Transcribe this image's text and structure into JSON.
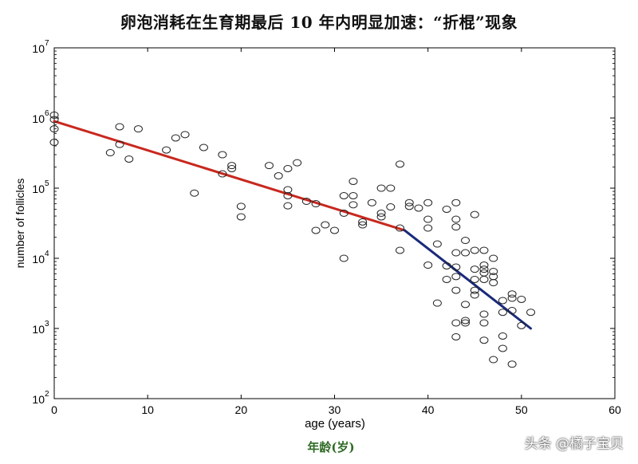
{
  "title": "卵泡消耗在生育期最后 10 年内明显加速：“折棍”现象",
  "caption_cn_x": "年龄(岁)",
  "watermark": "头条 @橘子宝贝",
  "colors": {
    "red_line": "#c8281e",
    "blue_line": "#1a2a7a",
    "axis": "#000000",
    "points": "#222222"
  },
  "chart_data": {
    "type": "scatter",
    "xlabel": "age (years)",
    "ylabel": "number of follicles",
    "xlim": [
      0,
      60
    ],
    "ylim_log10": [
      2,
      7
    ],
    "y_scale": "log",
    "grid": false,
    "xticks": [
      0,
      10,
      20,
      30,
      40,
      50,
      60
    ],
    "yticks": [
      {
        "exp": 2,
        "label": "10",
        "sup": "2"
      },
      {
        "exp": 3,
        "label": "10",
        "sup": "3"
      },
      {
        "exp": 4,
        "label": "10",
        "sup": "4"
      },
      {
        "exp": 5,
        "label": "10",
        "sup": "5"
      },
      {
        "exp": 6,
        "label": "10",
        "sup": "6"
      },
      {
        "exp": 7,
        "label": "10",
        "sup": "7"
      }
    ],
    "points": [
      [
        0,
        1100000
      ],
      [
        0,
        950000
      ],
      [
        0,
        700000
      ],
      [
        0,
        450000
      ],
      [
        6,
        320000
      ],
      [
        7,
        750000
      ],
      [
        7,
        420000
      ],
      [
        8,
        260000
      ],
      [
        9,
        700000
      ],
      [
        12,
        350000
      ],
      [
        13,
        520000
      ],
      [
        14,
        580000
      ],
      [
        15,
        85000
      ],
      [
        16,
        380000
      ],
      [
        18,
        300000
      ],
      [
        18,
        160000
      ],
      [
        19,
        210000
      ],
      [
        19,
        190000
      ],
      [
        20,
        55000
      ],
      [
        20,
        39000
      ],
      [
        23,
        210000
      ],
      [
        24,
        150000
      ],
      [
        25,
        190000
      ],
      [
        25,
        95000
      ],
      [
        25,
        78000
      ],
      [
        25,
        56000
      ],
      [
        26,
        230000
      ],
      [
        27,
        65000
      ],
      [
        28,
        60000
      ],
      [
        28,
        25000
      ],
      [
        29,
        30000
      ],
      [
        30,
        25000
      ],
      [
        31,
        78000
      ],
      [
        31,
        44000
      ],
      [
        31,
        10000
      ],
      [
        32,
        125000
      ],
      [
        32,
        78000
      ],
      [
        32,
        58000
      ],
      [
        33,
        33000
      ],
      [
        33,
        30000
      ],
      [
        34,
        62000
      ],
      [
        35,
        100000
      ],
      [
        35,
        44000
      ],
      [
        35,
        39000
      ],
      [
        36,
        100000
      ],
      [
        36,
        54000
      ],
      [
        37,
        220000
      ],
      [
        37,
        27000
      ],
      [
        37,
        13000
      ],
      [
        38,
        62000
      ],
      [
        38,
        55000
      ],
      [
        39,
        52000
      ],
      [
        40,
        62000
      ],
      [
        40,
        36000
      ],
      [
        40,
        27000
      ],
      [
        40,
        8000
      ],
      [
        41,
        16000
      ],
      [
        41,
        2300
      ],
      [
        42,
        50000
      ],
      [
        42,
        7800
      ],
      [
        42,
        5000
      ],
      [
        43,
        62000
      ],
      [
        43,
        36000
      ],
      [
        43,
        28000
      ],
      [
        43,
        12000
      ],
      [
        43,
        7500
      ],
      [
        43,
        5500
      ],
      [
        43,
        3500
      ],
      [
        43,
        1200
      ],
      [
        43,
        760
      ],
      [
        44,
        18000
      ],
      [
        44,
        12000
      ],
      [
        44,
        2200
      ],
      [
        44,
        1300
      ],
      [
        44,
        1200
      ],
      [
        45,
        42000
      ],
      [
        45,
        13000
      ],
      [
        45,
        7000
      ],
      [
        45,
        5000
      ],
      [
        45,
        3500
      ],
      [
        45,
        3000
      ],
      [
        46,
        13000
      ],
      [
        46,
        8000
      ],
      [
        46,
        7000
      ],
      [
        46,
        6200
      ],
      [
        46,
        5000
      ],
      [
        46,
        1600
      ],
      [
        46,
        1200
      ],
      [
        46,
        680
      ],
      [
        47,
        10000
      ],
      [
        47,
        6500
      ],
      [
        47,
        5500
      ],
      [
        47,
        4500
      ],
      [
        47,
        360
      ],
      [
        48,
        2500
      ],
      [
        48,
        1700
      ],
      [
        48,
        780
      ],
      [
        48,
        520
      ],
      [
        49,
        3100
      ],
      [
        49,
        2700
      ],
      [
        49,
        1800
      ],
      [
        49,
        310
      ],
      [
        50,
        2600
      ],
      [
        50,
        1100
      ],
      [
        51,
        1700
      ]
    ],
    "series": [
      {
        "color": "#c8281e",
        "x": [
          0,
          37.5
        ],
        "y": [
          900000,
          25000
        ]
      },
      {
        "color": "#1a2a7a",
        "x": [
          37.5,
          51
        ],
        "y": [
          25000,
          1000
        ]
      }
    ]
  }
}
